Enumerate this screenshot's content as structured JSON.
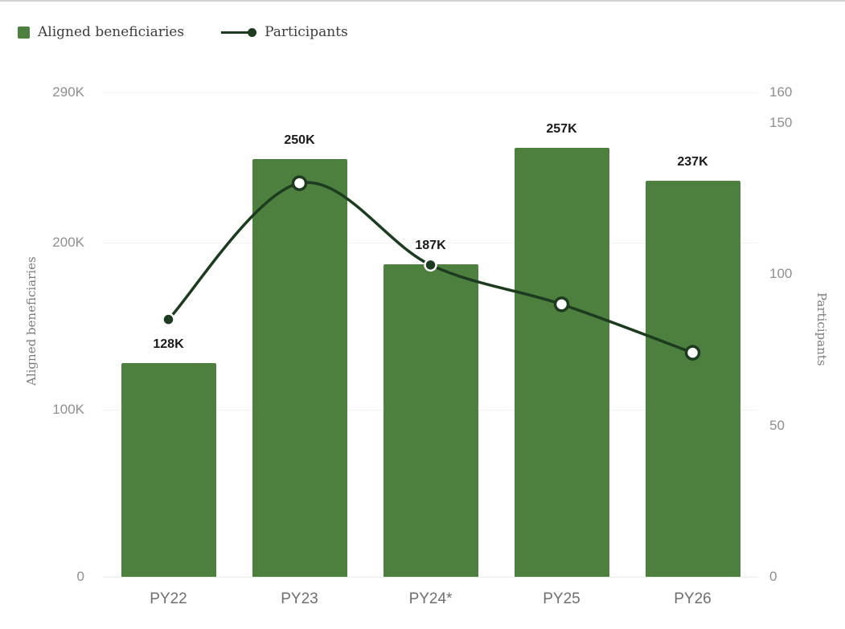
{
  "legend": {
    "items": [
      {
        "label": "Aligned beneficiaries",
        "marker": "square",
        "color": "#4d7f3f"
      },
      {
        "label": "Participants",
        "marker": "line-dot",
        "color": "#1d3b1e"
      }
    ]
  },
  "chart_data": {
    "type": "bar+line combo",
    "title": "",
    "categories": [
      "PY22",
      "PY23",
      "PY24*",
      "PY25",
      "PY26"
    ],
    "series": [
      {
        "name": "Aligned beneficiaries",
        "type": "bar",
        "axis": "left",
        "values": [
          128000,
          250000,
          187000,
          257000,
          237000
        ],
        "labels": [
          "128K",
          "250K",
          "187K",
          "257K",
          "237K"
        ],
        "color": "#4d7f3f"
      },
      {
        "name": "Participants",
        "type": "line",
        "axis": "right",
        "values": [
          85,
          130,
          103,
          90,
          74
        ],
        "color": "#1d3b1e",
        "marker_styles": [
          "filled",
          "open",
          "filled",
          "open",
          "open"
        ]
      }
    ],
    "left_axis": {
      "title": "Aligned beneficiaries",
      "max": 290000,
      "ticks": [
        {
          "v": 0,
          "label": "0"
        },
        {
          "v": 100000,
          "label": "100K"
        },
        {
          "v": 200000,
          "label": "200K"
        },
        {
          "v": 290000,
          "label": "290K"
        }
      ]
    },
    "right_axis": {
      "title": "Participants",
      "max": 160,
      "ticks": [
        {
          "v": 0,
          "label": "0"
        },
        {
          "v": 50,
          "label": "50"
        },
        {
          "v": 100,
          "label": "100"
        },
        {
          "v": 150,
          "label": "150"
        },
        {
          "v": 160,
          "label": "160"
        }
      ]
    },
    "grid": "horizontal-light",
    "legend_position": "top-left"
  }
}
